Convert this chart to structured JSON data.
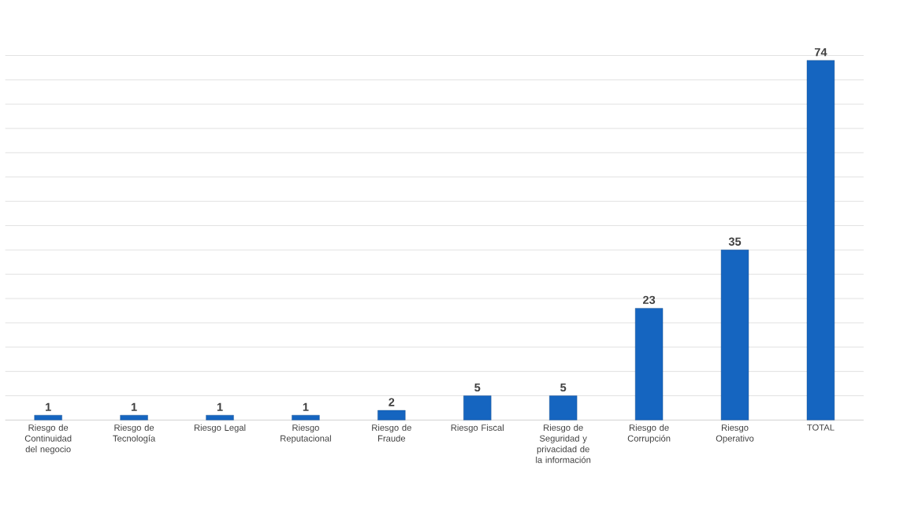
{
  "chart_data": {
    "type": "bar",
    "categories": [
      "Riesgo de Continuidad del negocio",
      "Riesgo de Tecnología",
      "Riesgo Legal",
      "Riesgo Reputacional",
      "Riesgo de Fraude",
      "Riesgo Fiscal",
      "Riesgo de Seguridad y privacidad de la información",
      "Riesgo de Corrupción",
      "Riesgo Operativo",
      "TOTAL"
    ],
    "values": [
      1,
      1,
      1,
      1,
      2,
      5,
      5,
      23,
      35,
      74
    ],
    "color": "#1565c0",
    "tick_labels": "x",
    "grid": "y",
    "data_labels": true
  }
}
